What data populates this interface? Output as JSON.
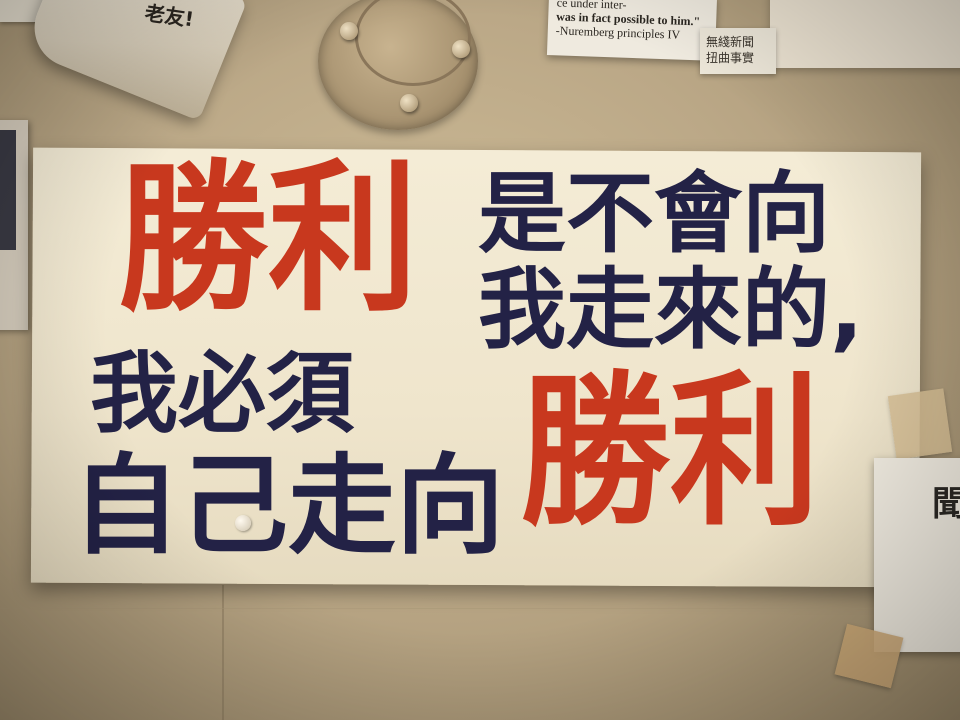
{
  "scene": {
    "wall_color": "#bba887",
    "poster_paper_color": "#f1e8d0"
  },
  "poster": {
    "line1_red": "勝利",
    "line1_navy_top": "是不會向",
    "line1_navy_bottom": "我走來的,",
    "line2_navy_top": "我必須",
    "line2_navy_bottom": "自己走向",
    "line2_red": "勝利",
    "red_ink": "#c8381e",
    "navy_ink": "#232246"
  },
  "top_curl_note": {
    "text": "老友!"
  },
  "top_note": {
    "line1": "ce under inter-",
    "line2": "was in fact possible to him.\"",
    "line3": "-Nuremberg principles IV"
  },
  "side_note": {
    "line1": "無綫新聞",
    "line2": "扭曲事實"
  },
  "right_note": {
    "char": "聞"
  }
}
